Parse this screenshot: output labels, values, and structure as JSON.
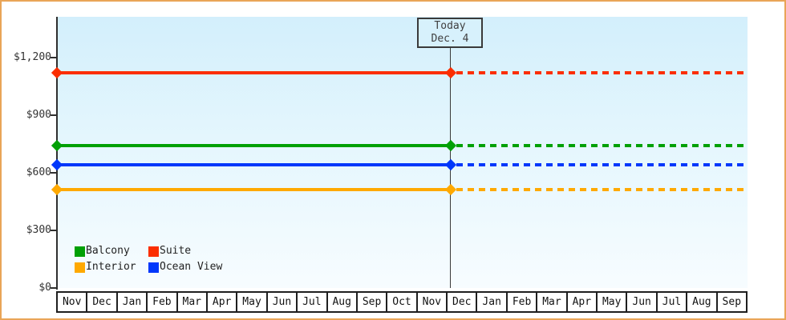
{
  "chart_data": {
    "type": "line",
    "title": "",
    "x_categories": [
      "Nov",
      "Dec",
      "Jan",
      "Feb",
      "Mar",
      "Apr",
      "May",
      "Jun",
      "Jul",
      "Aug",
      "Sep",
      "Oct",
      "Nov",
      "Dec",
      "Jan",
      "Feb",
      "Mar",
      "Apr",
      "May",
      "Jun",
      "Jul",
      "Aug",
      "Sep"
    ],
    "y_axis": {
      "ticks": [
        {
          "label": "$0",
          "value": 0
        },
        {
          "label": "$300",
          "value": 300
        },
        {
          "label": "$600",
          "value": 600
        },
        {
          "label": "$900",
          "value": 900
        },
        {
          "label": "$1,200",
          "value": 1200
        }
      ],
      "ylim": [
        0,
        1410
      ],
      "unit_prefix": "$"
    },
    "series": [
      {
        "name": "Suite",
        "color": "#fb2e00",
        "value": 1120
      },
      {
        "name": "Balcony",
        "color": "#00a005",
        "value": 740
      },
      {
        "name": "Ocean View",
        "color": "#0037fb",
        "value": 640
      },
      {
        "name": "Interior",
        "color": "#ffa900",
        "value": 510
      }
    ],
    "line_style": {
      "before_today": "solid",
      "after_today": "dashed",
      "thickness_px": 4,
      "marker": "diamond"
    },
    "annotation": {
      "line1": "Today",
      "line2": "Dec. 4",
      "x_category_index": 13,
      "day_of_month": 4
    },
    "legend": {
      "position": "bottom-left",
      "items": [
        {
          "label": "Balcony",
          "color": "#00a005"
        },
        {
          "label": "Suite",
          "color": "#fb2e00"
        },
        {
          "label": "Interior",
          "color": "#ffa900"
        },
        {
          "label": "Ocean View",
          "color": "#0037fb"
        }
      ]
    },
    "grid": false
  },
  "colors": {
    "frame_border": "#e9a558",
    "plot_bg_top": "#d3effc",
    "plot_bg_bottom": "#f7fcff",
    "axis": "#2f2f2f",
    "text": "#333333"
  }
}
